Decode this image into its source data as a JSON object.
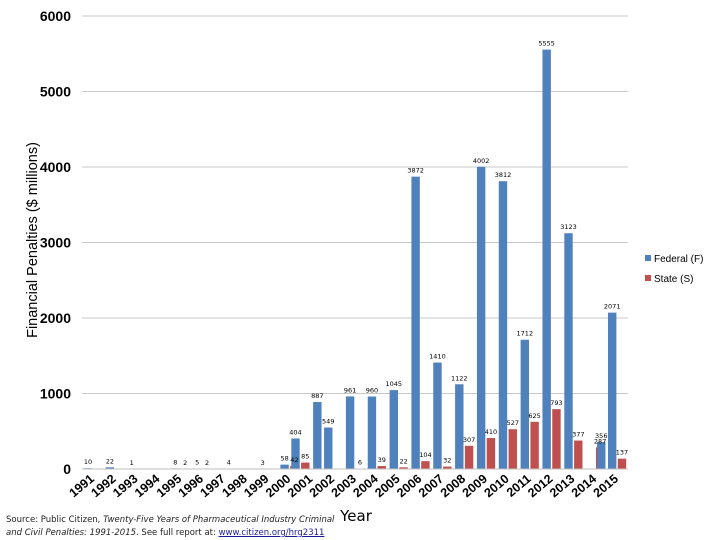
{
  "chart_data": {
    "type": "bar",
    "title": "",
    "xlabel": "Year",
    "ylabel": "Financial Penalties ($ millions)",
    "ylim": [
      0,
      6000
    ],
    "yticks": [
      0,
      1000,
      2000,
      3000,
      4000,
      5000,
      6000
    ],
    "ytick_labels": [
      "0",
      "1000",
      "2000",
      "3000",
      "4000",
      "5000",
      "6000"
    ],
    "grid": true,
    "legend_position": "right",
    "categories": [
      "1991",
      "1992",
      "1993",
      "1994",
      "1995",
      "1996",
      "1997",
      "1998",
      "1999",
      "2000",
      "2001",
      "2002",
      "2003",
      "2004",
      "2005",
      "2006",
      "2007",
      "2008",
      "2009",
      "2010",
      "2011",
      "2012",
      "2013",
      "2014",
      "2015"
    ],
    "series": [
      {
        "name": "Federal (F)",
        "color": "#4f81bd",
        "values": [
          10,
          22,
          1,
          0,
          8,
          5,
          0,
          0,
          3,
          58,
          0,
          549,
          961,
          960,
          1045,
          3872,
          1410,
          1122,
          4002,
          3812,
          1712,
          5555,
          3123,
          0,
          2071
        ],
        "labels": [
          "10",
          "22",
          "1",
          "",
          "8",
          "5",
          "",
          "",
          "3",
          "58",
          "",
          "549",
          "961",
          "960",
          "1045",
          "3872",
          "1410",
          "1122",
          "4002",
          "3812",
          "1712",
          "5555",
          "3123",
          "",
          "2071"
        ]
      },
      {
        "name": "State (S)",
        "color": "#c0504d",
        "values": [
          0,
          0,
          0,
          0,
          2,
          2,
          4,
          0,
          0,
          42,
          0,
          0,
          6,
          39,
          22,
          104,
          32,
          307,
          410,
          527,
          625,
          793,
          377,
          287,
          137
        ],
        "labels": [
          "",
          "",
          "",
          "",
          "2",
          "2",
          "4",
          "",
          "",
          "42",
          "",
          "",
          "6",
          "39",
          "22",
          "104",
          "32",
          "307",
          "410",
          "527",
          "625",
          "793",
          "377",
          "287",
          "137"
        ]
      }
    ],
    "extra_bars": [
      {
        "category": "2000",
        "value": 404,
        "label": "404",
        "color": "#4f81bd"
      },
      {
        "category": "2000",
        "value": 85,
        "label": "85",
        "color": "#c0504d"
      },
      {
        "category": "2001",
        "value": 887,
        "label": "887",
        "color": "#4f81bd"
      },
      {
        "category": "2014",
        "value": 356,
        "label": "356",
        "color": "#4f81bd"
      }
    ]
  },
  "source": {
    "prefix": "Source: Public Citizen, ",
    "title": "Twenty-Five Years of Pharmaceutical Industry Criminal and Civil Penalties: 1991-2015",
    "middle": ". See full report at: ",
    "link": "www.citizen.org/hrg2311"
  }
}
